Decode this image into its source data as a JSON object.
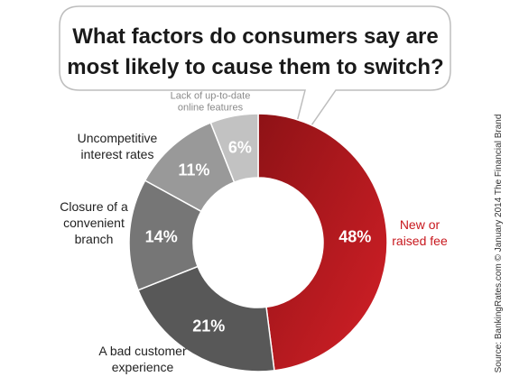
{
  "chart_data": {
    "type": "pie",
    "title_lines": [
      "What factors do consumers say are",
      "most likely to cause them to switch?"
    ],
    "categories": [
      "New or raised fee",
      "A bad customer experience",
      "Closure of a convenient branch",
      "Uncompetitive interest rates",
      "Lack of up-to-date online features"
    ],
    "values": [
      48,
      21,
      14,
      11,
      6
    ],
    "value_labels": [
      "48%",
      "21%",
      "14%",
      "11%",
      "6%"
    ],
    "label_lines": [
      [
        "New or",
        "raised fee"
      ],
      [
        "A bad customer",
        "experience"
      ],
      [
        "Closure of a",
        "convenient",
        "branch"
      ],
      [
        "Uncompetitive",
        "interest rates"
      ],
      [
        "Lack of up-to-date",
        "online features"
      ]
    ],
    "colors": [
      "#c41a1f",
      "#585858",
      "#767676",
      "#999999",
      "#c2c2c2"
    ],
    "source": "Source: BankingRates.com © January 2014 The Financial Brand"
  }
}
